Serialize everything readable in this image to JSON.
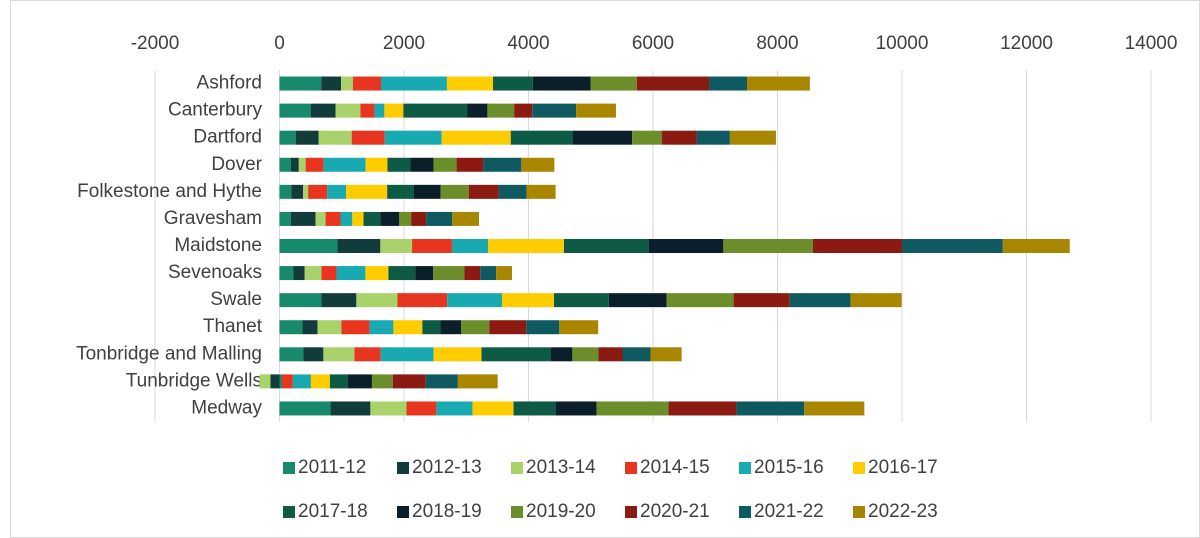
{
  "chart_data": {
    "type": "stacked-bar-horizontal",
    "categories": [
      "Ashford",
      "Canterbury",
      "Dartford",
      "Dover",
      "Folkestone and Hythe",
      "Gravesham",
      "Maidstone",
      "Sevenoaks",
      "Swale",
      "Thanet",
      "Tonbridge and Malling",
      "Tunbridge Wells",
      "Medway"
    ],
    "xlim": [
      -2000,
      14000
    ],
    "xticks": [
      -2000,
      0,
      2000,
      4000,
      6000,
      8000,
      10000,
      12000,
      14000
    ],
    "grid": true,
    "legend": "bottom",
    "series": [
      {
        "name": "2011-12",
        "color": "#168a6b",
        "values": [
          670,
          500,
          260,
          180,
          190,
          180,
          930,
          225,
          675,
          370,
          385,
          40,
          820
        ]
      },
      {
        "name": "2012-13",
        "color": "#123c3c",
        "values": [
          320,
          400,
          370,
          130,
          190,
          400,
          690,
          180,
          560,
          240,
          320,
          -145,
          640
        ]
      },
      {
        "name": "2013-14",
        "color": "#a9d26b",
        "values": [
          190,
          400,
          530,
          110,
          80,
          160,
          510,
          270,
          660,
          385,
          500,
          -175,
          580
        ]
      },
      {
        "name": "2014-15",
        "color": "#e8351f",
        "values": [
          450,
          225,
          530,
          290,
          305,
          240,
          640,
          240,
          800,
          450,
          420,
          175,
          480
        ]
      },
      {
        "name": "2015-16",
        "color": "#19a9b0",
        "values": [
          1060,
          160,
          915,
          675,
          305,
          190,
          580,
          465,
          880,
          385,
          850,
          290,
          580
        ]
      },
      {
        "name": "2016-17",
        "color": "#ffcc00",
        "values": [
          740,
          305,
          1110,
          350,
          660,
          180,
          1220,
          370,
          835,
          465,
          770,
          305,
          660
        ]
      },
      {
        "name": "2017-18",
        "color": "#0d5a45",
        "values": [
          640,
          1030,
          1000,
          370,
          430,
          270,
          1360,
          430,
          880,
          290,
          1110,
          290,
          675
        ]
      },
      {
        "name": "2018-19",
        "color": "#0a1f2a",
        "values": [
          930,
          320,
          950,
          370,
          430,
          305,
          1200,
          290,
          930,
          335,
          350,
          385,
          660
        ]
      },
      {
        "name": "2019-20",
        "color": "#6b8e2a",
        "values": [
          740,
          430,
          480,
          370,
          450,
          190,
          1440,
          500,
          1075,
          450,
          420,
          335,
          1155
        ]
      },
      {
        "name": "2020-21",
        "color": "#8b1a12",
        "values": [
          1160,
          290,
          560,
          430,
          480,
          240,
          1430,
          255,
          900,
          595,
          385,
          530,
          1090
        ]
      },
      {
        "name": "2021-22",
        "color": "#0f5a60",
        "values": [
          610,
          705,
          530,
          610,
          450,
          420,
          1620,
          255,
          980,
          530,
          450,
          515,
          1090
        ]
      },
      {
        "name": "2022-23",
        "color": "#a88600",
        "values": [
          1010,
          640,
          740,
          530,
          465,
          430,
          1075,
          255,
          820,
          625,
          500,
          640,
          965
        ]
      }
    ]
  }
}
